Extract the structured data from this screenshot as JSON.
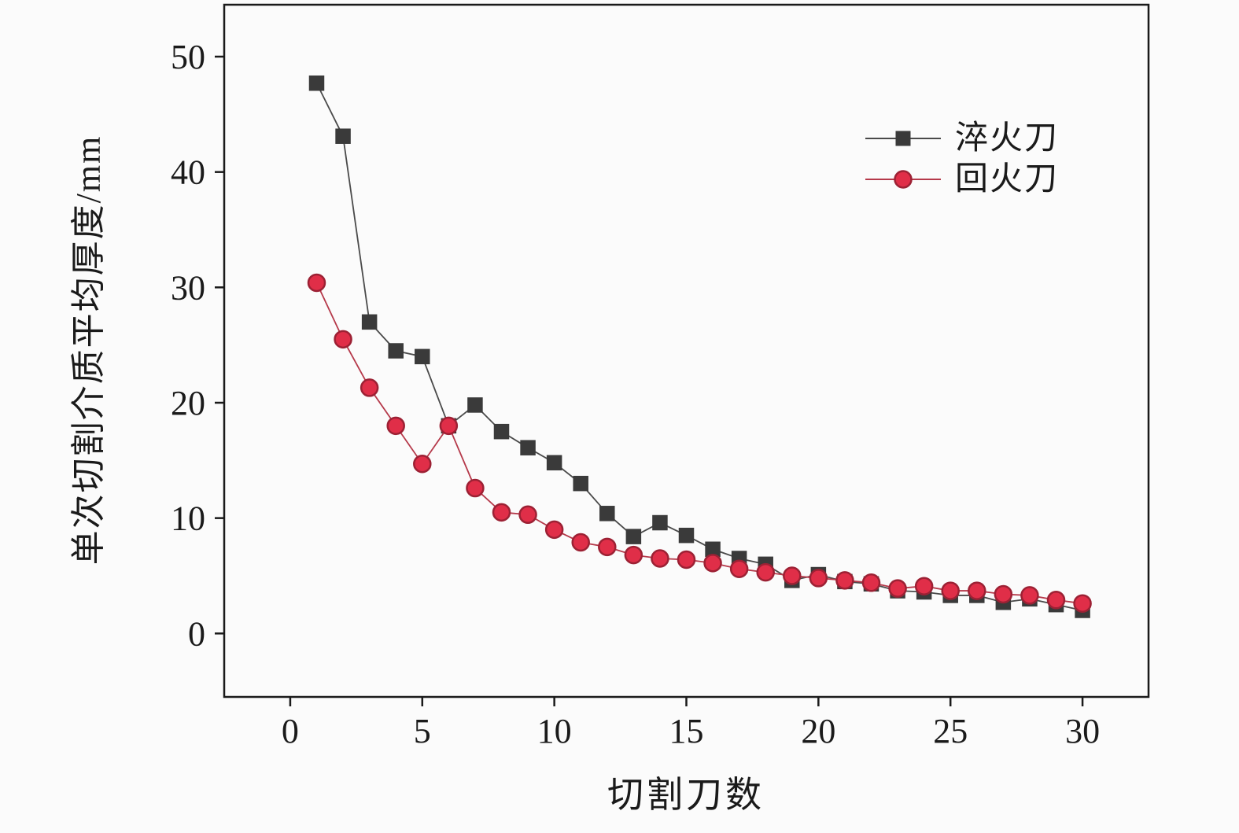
{
  "chart_data": {
    "type": "line",
    "title": "",
    "xlabel": "切割刀数",
    "ylabel": "单次切割介质平均厚度/mm",
    "xlim": [
      -2.5,
      32.5
    ],
    "ylim": [
      -5.5,
      54.5
    ],
    "x_ticks": [
      0,
      5,
      10,
      15,
      20,
      25,
      30
    ],
    "y_ticks": [
      0,
      10,
      20,
      30,
      40,
      50
    ],
    "grid": false,
    "legend_position": "upper right",
    "background": "#fbfbfb",
    "axis_color": "#1a1a1a",
    "x": [
      1,
      2,
      3,
      4,
      5,
      6,
      7,
      8,
      9,
      10,
      11,
      12,
      13,
      14,
      15,
      16,
      17,
      18,
      19,
      20,
      21,
      22,
      23,
      24,
      25,
      26,
      27,
      28,
      29,
      30
    ],
    "series": [
      {
        "name": "淬火刀",
        "marker": "square",
        "color": "#3a3a3a",
        "edge_color": "#3a3a3a",
        "line_color": "#4a4a4a",
        "values": [
          47.7,
          43.1,
          27.0,
          24.5,
          24.0,
          18.0,
          19.8,
          17.5,
          16.1,
          14.8,
          13.0,
          10.4,
          8.4,
          9.6,
          8.5,
          7.3,
          6.5,
          6.0,
          4.6,
          5.1,
          4.5,
          4.3,
          3.7,
          3.6,
          3.3,
          3.3,
          2.7,
          3.0,
          2.5,
          2.0
        ]
      },
      {
        "name": "回火刀",
        "marker": "circle",
        "color": "#e02e48",
        "edge_color": "#9c2134",
        "line_color": "#b5394a",
        "values": [
          30.4,
          25.5,
          21.3,
          18.0,
          14.7,
          18.0,
          12.6,
          10.5,
          10.3,
          9.0,
          7.9,
          7.5,
          6.8,
          6.5,
          6.4,
          6.1,
          5.6,
          5.3,
          5.0,
          4.8,
          4.6,
          4.4,
          3.9,
          4.1,
          3.7,
          3.7,
          3.4,
          3.3,
          2.9,
          2.6
        ]
      }
    ]
  }
}
